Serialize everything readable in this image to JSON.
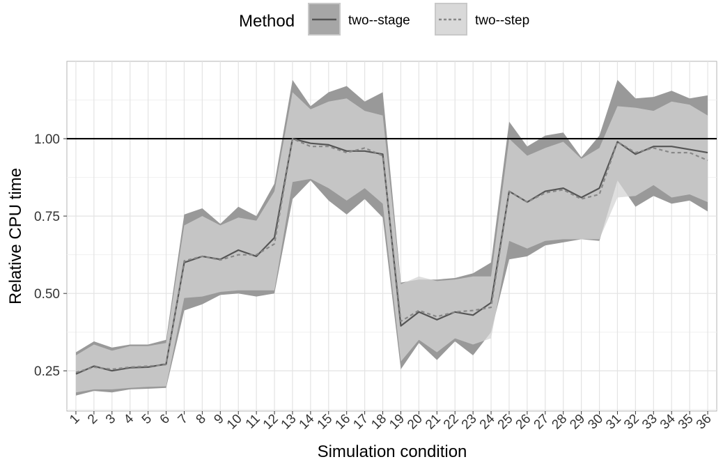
{
  "legend": {
    "title": "Method",
    "items": [
      {
        "label": "two--stage",
        "fill": "#a6a6a6",
        "line": "#555555",
        "dash": false
      },
      {
        "label": "two--step",
        "fill": "#d9d9d9",
        "line": "#888888",
        "dash": true
      }
    ]
  },
  "chart_data": {
    "type": "line",
    "xlabel": "Simulation condition",
    "ylabel": "Relative CPU time",
    "x": [
      1,
      2,
      3,
      4,
      5,
      6,
      7,
      8,
      9,
      10,
      11,
      12,
      13,
      14,
      15,
      16,
      17,
      18,
      19,
      20,
      21,
      22,
      23,
      24,
      25,
      26,
      27,
      28,
      29,
      30,
      31,
      32,
      33,
      34,
      35,
      36
    ],
    "xlim": [
      0.5,
      36.5
    ],
    "ylim": [
      0.12,
      1.25
    ],
    "yticks": [
      0.25,
      0.5,
      0.75,
      1.0
    ],
    "ytick_labels": [
      "0.25",
      "0.50",
      "0.75",
      "1.00"
    ],
    "reference_line": {
      "y": 1.0,
      "color": "#000000"
    },
    "grid": true,
    "legend_position": "top",
    "series": [
      {
        "name": "two--stage",
        "color": "#555555",
        "band_color": "#999999",
        "dash": false,
        "values": [
          0.24,
          0.265,
          0.25,
          0.26,
          0.262,
          0.272,
          0.6,
          0.62,
          0.61,
          0.64,
          0.62,
          0.68,
          1.0,
          0.985,
          0.98,
          0.96,
          0.96,
          0.95,
          0.395,
          0.44,
          0.415,
          0.44,
          0.43,
          0.47,
          0.83,
          0.795,
          0.83,
          0.84,
          0.81,
          0.84,
          0.99,
          0.95,
          0.975,
          0.975,
          0.965,
          0.955
        ],
        "upper": [
          0.31,
          0.345,
          0.325,
          0.335,
          0.335,
          0.35,
          0.755,
          0.775,
          0.725,
          0.78,
          0.75,
          0.855,
          1.19,
          1.105,
          1.15,
          1.17,
          1.12,
          1.15,
          0.535,
          0.545,
          0.545,
          0.55,
          0.565,
          0.6,
          1.055,
          0.975,
          1.01,
          1.02,
          0.94,
          1.01,
          1.19,
          1.13,
          1.135,
          1.155,
          1.13,
          1.14
        ],
        "lower": [
          0.17,
          0.185,
          0.18,
          0.19,
          0.192,
          0.195,
          0.445,
          0.465,
          0.495,
          0.5,
          0.49,
          0.5,
          0.805,
          0.865,
          0.8,
          0.755,
          0.805,
          0.745,
          0.255,
          0.34,
          0.285,
          0.345,
          0.3,
          0.375,
          0.61,
          0.62,
          0.655,
          0.665,
          0.675,
          0.67,
          0.865,
          0.78,
          0.815,
          0.79,
          0.8,
          0.765
        ]
      },
      {
        "name": "two--step",
        "color": "#888888",
        "band_color": "#d4d4d4",
        "dash": true,
        "values": [
          0.245,
          0.262,
          0.255,
          0.262,
          0.265,
          0.27,
          0.605,
          0.62,
          0.608,
          0.625,
          0.625,
          0.66,
          1.0,
          0.975,
          0.975,
          0.955,
          0.97,
          0.945,
          0.41,
          0.445,
          0.425,
          0.44,
          0.445,
          0.455,
          0.83,
          0.795,
          0.825,
          0.835,
          0.805,
          0.82,
          0.99,
          0.955,
          0.97,
          0.955,
          0.955,
          0.93
        ],
        "upper": [
          0.3,
          0.335,
          0.315,
          0.33,
          0.33,
          0.34,
          0.72,
          0.75,
          0.72,
          0.745,
          0.735,
          0.83,
          1.15,
          1.095,
          1.12,
          1.13,
          1.09,
          1.075,
          0.53,
          0.555,
          0.54,
          0.545,
          0.555,
          0.555,
          1.0,
          0.945,
          0.97,
          0.99,
          0.935,
          0.97,
          1.105,
          1.1,
          1.09,
          1.12,
          1.11,
          1.075
        ],
        "lower": [
          0.18,
          0.19,
          0.19,
          0.195,
          0.198,
          0.2,
          0.485,
          0.49,
          0.505,
          0.51,
          0.51,
          0.51,
          0.86,
          0.87,
          0.84,
          0.8,
          0.84,
          0.79,
          0.28,
          0.35,
          0.31,
          0.355,
          0.335,
          0.355,
          0.67,
          0.645,
          0.67,
          0.675,
          0.675,
          0.675,
          0.81,
          0.815,
          0.85,
          0.81,
          0.82,
          0.795
        ]
      }
    ]
  }
}
